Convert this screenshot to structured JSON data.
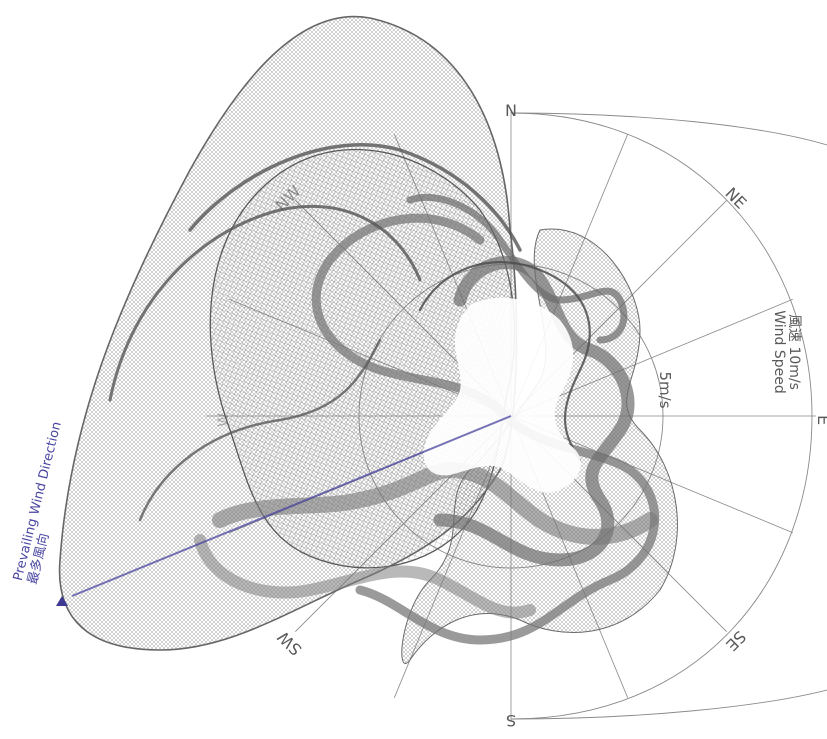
{
  "directions": {
    "n": "N",
    "ne": "NE",
    "e": "E",
    "se": "SE",
    "s": "S",
    "sw": "SW",
    "nw": "NW",
    "w": "W"
  },
  "speed_inner": "5m/s",
  "speed_outer_zh": "風速 10m/s",
  "speed_outer_en": "Wind Speed",
  "prevailing_zh": "最多風向",
  "prevailing_en": "Prevailing Wind Direction",
  "colors": {
    "mesh": "#6e6e6e",
    "ribbon": "#7a7a7a",
    "accent": "#4a46a0",
    "grid": "#777777"
  }
}
